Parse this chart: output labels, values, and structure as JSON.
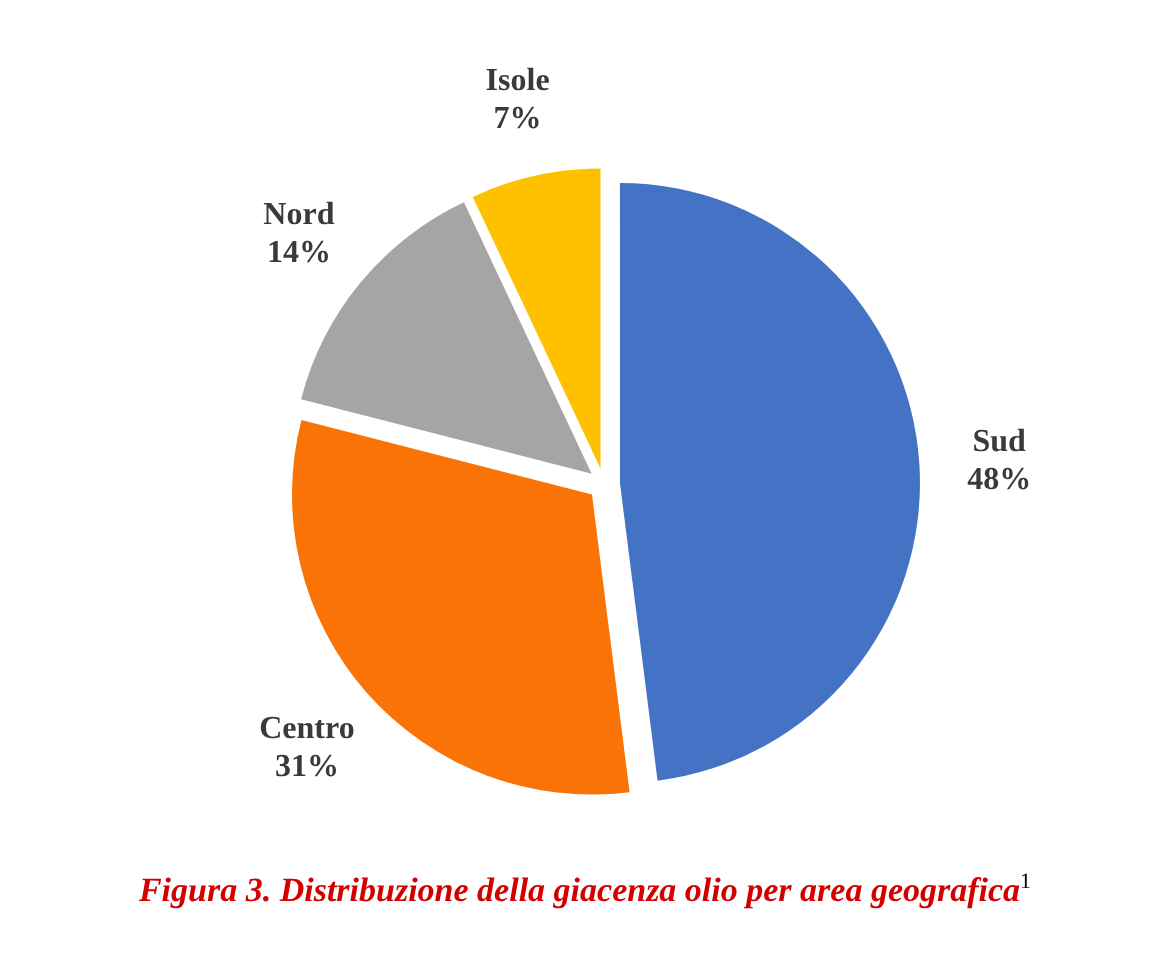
{
  "chart_data": {
    "type": "pie",
    "categories": [
      "Sud",
      "Centro",
      "Nord",
      "Isole"
    ],
    "values": [
      48,
      31,
      14,
      7
    ],
    "value_labels": [
      "48%",
      "31%",
      "14%",
      "7%"
    ],
    "colors": [
      "#4472c4",
      "#f97306",
      "#a5a5a5",
      "#ffc000"
    ],
    "annotations": [
      "Figura 3. Distribuzione della giacenza olio per area geografica$^{1}$"
    ]
  }
}
